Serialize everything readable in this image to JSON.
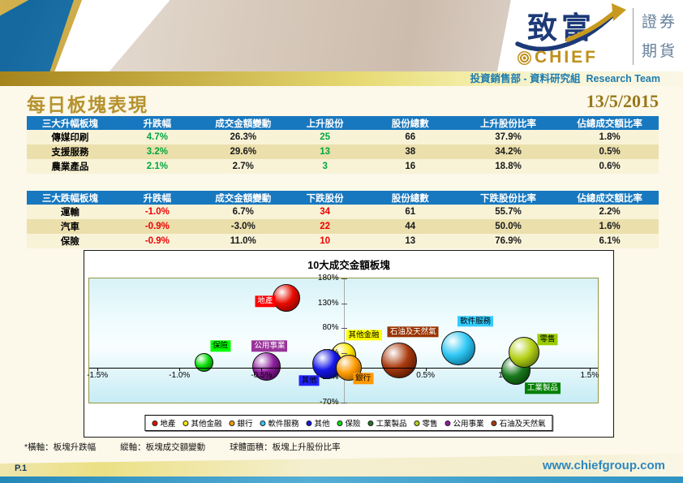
{
  "header": {
    "dept_line": "投資銷售部 - 資料研究組  Research Team",
    "logo": {
      "chinese": "致富",
      "english": "CHIEF",
      "service1": "證券",
      "service2": "期貨"
    }
  },
  "page": {
    "title": "每日板塊表現",
    "date": "13/5/2015"
  },
  "colors": {
    "accent_gold": "#b6922e",
    "table_header_blue": "#1878bf",
    "positive_green": "#00a63f",
    "negative_red": "#ee0000",
    "dept_teal": "#1e7cae",
    "footer_blue": "#2d87be"
  },
  "tables": [
    {
      "headers": [
        "三大升幅板塊",
        "升跌幅",
        "成交金額變動",
        "上升股份",
        "股份總數",
        "上升股份比率",
        "佔總成交額比率"
      ],
      "cell_styles": [
        "label",
        "pos",
        "neutral",
        "pos",
        "neutral",
        "neutral",
        "neutral"
      ],
      "rows": [
        [
          "傳媒印刷",
          "4.7%",
          "26.3%",
          "25",
          "66",
          "37.9%",
          "1.8%"
        ],
        [
          "支援服務",
          "3.2%",
          "29.6%",
          "13",
          "38",
          "34.2%",
          "0.5%"
        ],
        [
          "農業產品",
          "2.1%",
          "2.7%",
          "3",
          "16",
          "18.8%",
          "0.6%"
        ]
      ]
    },
    {
      "headers": [
        "三大跌幅板塊",
        "升跌幅",
        "成交金額變動",
        "下跌股份",
        "股份總數",
        "下跌股份比率",
        "佔總成交額比率"
      ],
      "cell_styles": [
        "label",
        "neg",
        "neutral",
        "neg",
        "neutral",
        "neutral",
        "neutral"
      ],
      "rows": [
        [
          "運輸",
          "-1.0%",
          "6.7%",
          "34",
          "61",
          "55.7%",
          "2.2%"
        ],
        [
          "汽車",
          "-0.9%",
          "-3.0%",
          "22",
          "44",
          "50.0%",
          "1.6%"
        ],
        [
          "保險",
          "-0.9%",
          "11.0%",
          "10",
          "13",
          "76.9%",
          "6.1%"
        ]
      ]
    }
  ],
  "chart_data": {
    "type": "bubble",
    "title": "10大成交金額板塊",
    "xlabel": "板塊升跌幅",
    "ylabel": "板塊成交額變動",
    "size_meaning": "板塊上升股份比率",
    "xlim": [
      -1.55,
      1.55
    ],
    "ylim": [
      -70,
      180
    ],
    "x_ticks": [
      "-1.5%",
      "-1.0%",
      "-0.5%",
      "0.0%",
      "0.5%",
      "1.0%",
      "1.5%"
    ],
    "x_tick_values": [
      -1.5,
      -1.0,
      -0.5,
      0.0,
      0.5,
      1.0,
      1.5
    ],
    "y_ticks": [
      "180%",
      "130%",
      "80%",
      "30%",
      "-20%",
      "-70%"
    ],
    "y_tick_values": [
      180,
      130,
      80,
      30,
      -20,
      -70
    ],
    "grid": false,
    "legend_position": "bottom",
    "series": [
      {
        "name": "地產",
        "x": -0.35,
        "y": 140,
        "size": 34,
        "z": 6,
        "color": "#e80c00",
        "dark": "#6f0000",
        "label_bg": "#ff0000",
        "label_fg": "#ffffff",
        "label_dx": -26,
        "label_dy": 4
      },
      {
        "name": "其他金融",
        "x": 0.0,
        "y": 25,
        "size": 31,
        "z": 1,
        "color": "#ffe800",
        "dark": "#8f7000",
        "label_bg": "#ffff00",
        "label_fg": "#000000",
        "label_dx": 25,
        "label_dy": -25
      },
      {
        "name": "銀行",
        "x": 0.03,
        "y": 0,
        "size": 32,
        "z": 10,
        "color": "#ff9c00",
        "dark": "#7a4400",
        "label_bg": "#ff9900",
        "label_fg": "#000000",
        "label_dx": 18,
        "label_dy": 13
      },
      {
        "name": "軟件服務",
        "x": 0.7,
        "y": 40,
        "size": 42,
        "z": 5,
        "color": "#2fc8f5",
        "dark": "#005577",
        "label_bg": "#33ccff",
        "label_fg": "#000000",
        "label_dx": 21,
        "label_dy": -33
      },
      {
        "name": "其他",
        "x": -0.1,
        "y": 7,
        "size": 37,
        "z": 9,
        "color": "#1616e8",
        "dark": "#00004d",
        "label_bg": "#2222ff",
        "label_fg": "#000000",
        "label_dx": -22,
        "label_dy": 20
      },
      {
        "name": "保險",
        "x": -0.85,
        "y": 11,
        "size": 23,
        "z": 3,
        "color": "#0ae00a",
        "dark": "#004d00",
        "label_bg": "#00ff00",
        "label_fg": "#000000",
        "label_dx": 20,
        "label_dy": -20
      },
      {
        "name": "工業製品",
        "x": 1.05,
        "y": -5,
        "size": 36,
        "z": 7,
        "color": "#1a7a1e",
        "dark": "#002d00",
        "label_bg": "#008000",
        "label_fg": "#ffffff",
        "label_dx": 33,
        "label_dy": 22
      },
      {
        "name": "零售",
        "x": 1.1,
        "y": 31,
        "size": 38,
        "z": 8,
        "color": "#b5d118",
        "dark": "#3f5500",
        "label_bg": "#99cc00",
        "label_fg": "#000000",
        "label_dx": 29,
        "label_dy": -16
      },
      {
        "name": "公用事業",
        "x": -0.47,
        "y": 3,
        "size": 35,
        "z": 4,
        "color": "#8f1f9e",
        "dark": "#2a0033",
        "label_bg": "#993399",
        "label_fg": "#ffffff",
        "label_dx": 4,
        "label_dy": -25
      },
      {
        "name": "石油及天然氣",
        "x": 0.34,
        "y": 15,
        "size": 44,
        "z": 2,
        "color": "#aa3a0e",
        "dark": "#330c00",
        "label_bg": "#993300",
        "label_fg": "#ffffff",
        "label_dx": 17,
        "label_dy": -35
      }
    ],
    "legend": [
      "地產",
      "其他金融",
      "銀行",
      "軟件服務",
      "其他",
      "保險",
      "工業製品",
      "零售",
      "公用事業",
      "石油及天然氣"
    ]
  },
  "footnote": {
    "axis_x": "*橫軸：板塊升跌幅",
    "axis_y": "縱軸：板塊成交額變動",
    "size": "球體面積：板塊上升股份比率"
  },
  "footer": {
    "page_no": "P.1",
    "website": "www.chiefgroup.com"
  }
}
